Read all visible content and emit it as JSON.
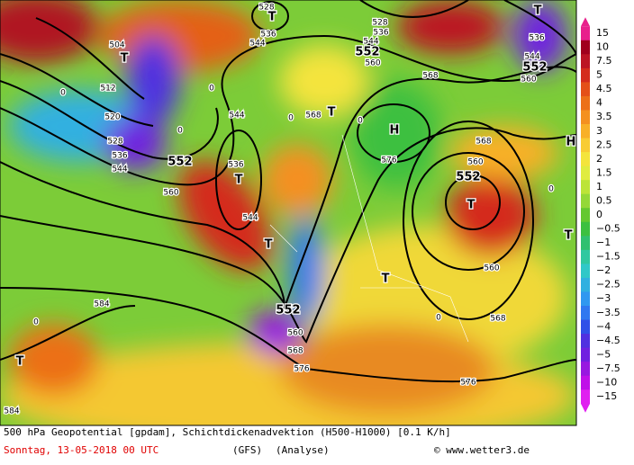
{
  "map": {
    "labels": [
      "504",
      "512",
      "520",
      "528",
      "536",
      "544",
      "552",
      "560",
      "536",
      "T",
      "544",
      "544",
      "T",
      "552",
      "560",
      "568",
      "576",
      "576",
      "584",
      "584",
      "T",
      "T",
      "568",
      "T",
      "H",
      "576",
      "552",
      "T",
      "560",
      "568",
      "T",
      "552",
      "528",
      "T",
      "536",
      "544",
      "560",
      "568",
      "560",
      "552",
      "544",
      "536",
      "T",
      "528",
      "536",
      "544",
      "560",
      "568",
      "H",
      "T",
      "0",
      "0",
      "0",
      "0",
      "0",
      "0",
      "0",
      "0"
    ]
  },
  "legend": {
    "items": [
      {
        "label": "15",
        "color": "#e8208c"
      },
      {
        "label": "10",
        "color": "#a0001c"
      },
      {
        "label": "7.5",
        "color": "#bc1424"
      },
      {
        "label": "5",
        "color": "#d42c1c"
      },
      {
        "label": "4.5",
        "color": "#e45018"
      },
      {
        "label": "4",
        "color": "#ec7018"
      },
      {
        "label": "3.5",
        "color": "#f49020"
      },
      {
        "label": "3",
        "color": "#f8b028"
      },
      {
        "label": "2.5",
        "color": "#f8cc34"
      },
      {
        "label": "2",
        "color": "#f4e43c"
      },
      {
        "label": "1.5",
        "color": "#e0ec40"
      },
      {
        "label": "1",
        "color": "#bce438"
      },
      {
        "label": "0.5",
        "color": "#94d838"
      },
      {
        "label": "0",
        "color": "#64c830"
      },
      {
        "label": "−0.5",
        "color": "#3cc040"
      },
      {
        "label": "−1",
        "color": "#30c070"
      },
      {
        "label": "−1.5",
        "color": "#30c8a0"
      },
      {
        "label": "−2",
        "color": "#30c8c8"
      },
      {
        "label": "−2.5",
        "color": "#30b0e0"
      },
      {
        "label": "−3",
        "color": "#3098f0"
      },
      {
        "label": "−3.5",
        "color": "#3078f0"
      },
      {
        "label": "−4",
        "color": "#3050e8"
      },
      {
        "label": "−4.5",
        "color": "#5030e0"
      },
      {
        "label": "−5",
        "color": "#7020e0"
      },
      {
        "label": "−7.5",
        "color": "#9818e0"
      },
      {
        "label": "−10",
        "color": "#c010e8"
      },
      {
        "label": "−15",
        "color": "#e020f0"
      }
    ]
  },
  "footer": {
    "title": "500 hPa Geopotential [gpdam], Schichtdickenadvektion (H500-H1000) [0.1 K/h]",
    "date": "Sonntag, 13-05-2018  00 UTC",
    "model": "(GFS)",
    "run": "(Analyse)",
    "credit": "© www.wetter3.de"
  }
}
